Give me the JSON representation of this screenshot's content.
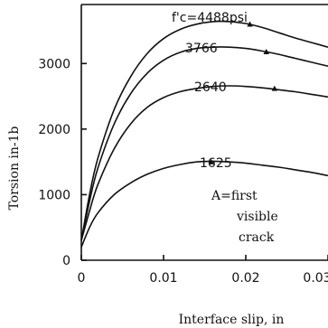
{
  "chart_data": {
    "type": "line",
    "title": "",
    "xlabel": "Interface slip, in",
    "ylabel": "Torsion in-1b",
    "xlim": [
      0,
      0.03
    ],
    "ylim": [
      0,
      3900
    ],
    "x_ticks": [
      0,
      0.01,
      0.02,
      0.03
    ],
    "x_tick_labels": [
      "0",
      "0.01",
      "0.02",
      "0.03"
    ],
    "y_ticks": [
      0,
      1000,
      2000,
      3000
    ],
    "y_tick_labels": [
      "0",
      "1000",
      "2000",
      "3000"
    ],
    "grid": false,
    "series": [
      {
        "name": "f'c=4488psi",
        "points": [
          [
            0,
            300
          ],
          [
            0.001,
            1000
          ],
          [
            0.002,
            1550
          ],
          [
            0.004,
            2300
          ],
          [
            0.006,
            2800
          ],
          [
            0.008,
            3150
          ],
          [
            0.01,
            3380
          ],
          [
            0.012,
            3520
          ],
          [
            0.014,
            3600
          ],
          [
            0.016,
            3640
          ],
          [
            0.018,
            3640
          ],
          [
            0.02,
            3610
          ],
          [
            0.022,
            3550
          ],
          [
            0.024,
            3470
          ],
          [
            0.026,
            3390
          ],
          [
            0.028,
            3320
          ],
          [
            0.03,
            3250
          ]
        ],
        "first_crack": [
          0.0205,
          3590
        ]
      },
      {
        "name": "3766",
        "points": [
          [
            0,
            300
          ],
          [
            0.001,
            900
          ],
          [
            0.002,
            1400
          ],
          [
            0.004,
            2080
          ],
          [
            0.006,
            2540
          ],
          [
            0.008,
            2850
          ],
          [
            0.01,
            3050
          ],
          [
            0.012,
            3170
          ],
          [
            0.014,
            3230
          ],
          [
            0.016,
            3250
          ],
          [
            0.018,
            3250
          ],
          [
            0.02,
            3230
          ],
          [
            0.022,
            3190
          ],
          [
            0.024,
            3140
          ],
          [
            0.026,
            3080
          ],
          [
            0.028,
            3020
          ],
          [
            0.03,
            2960
          ]
        ],
        "first_crack": [
          0.0225,
          3170
        ]
      },
      {
        "name": "2640",
        "points": [
          [
            0,
            300
          ],
          [
            0.001,
            750
          ],
          [
            0.002,
            1150
          ],
          [
            0.004,
            1700
          ],
          [
            0.006,
            2080
          ],
          [
            0.008,
            2330
          ],
          [
            0.01,
            2480
          ],
          [
            0.012,
            2570
          ],
          [
            0.014,
            2620
          ],
          [
            0.016,
            2650
          ],
          [
            0.018,
            2660
          ],
          [
            0.02,
            2650
          ],
          [
            0.022,
            2630
          ],
          [
            0.024,
            2600
          ],
          [
            0.026,
            2570
          ],
          [
            0.028,
            2530
          ],
          [
            0.03,
            2490
          ]
        ],
        "first_crack": [
          0.0235,
          2610
        ]
      },
      {
        "name": "1625",
        "points": [
          [
            0,
            200
          ],
          [
            0.001,
            500
          ],
          [
            0.002,
            720
          ],
          [
            0.004,
            1000
          ],
          [
            0.006,
            1180
          ],
          [
            0.008,
            1310
          ],
          [
            0.01,
            1400
          ],
          [
            0.012,
            1460
          ],
          [
            0.014,
            1500
          ],
          [
            0.016,
            1510
          ],
          [
            0.018,
            1500
          ],
          [
            0.02,
            1480
          ],
          [
            0.022,
            1450
          ],
          [
            0.024,
            1420
          ],
          [
            0.026,
            1380
          ],
          [
            0.028,
            1340
          ],
          [
            0.03,
            1290
          ]
        ],
        "first_crack": [
          0.0158,
          1490
        ]
      }
    ],
    "annotation": [
      "A=first",
      "visible",
      "crack"
    ]
  }
}
